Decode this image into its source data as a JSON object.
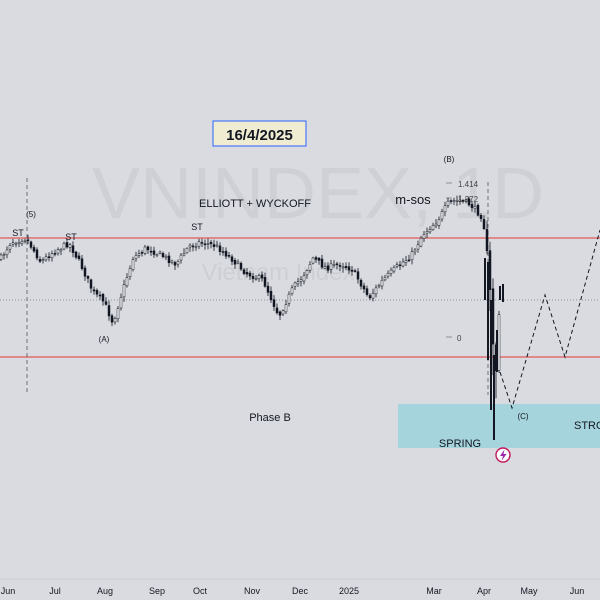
{
  "chart_data": {
    "type": "candlestick",
    "watermark": {
      "symbol": "VNINDEX, 1D",
      "sub": "Vietnam Index"
    },
    "date_box": "16/4/2025",
    "x_axis": {
      "ticks": [
        "Jun",
        "Jul",
        "Aug",
        "Sep",
        "Oct",
        "Nov",
        "Dec",
        "2025",
        "Mar",
        "Apr",
        "May",
        "Jun"
      ]
    },
    "annotations": {
      "title": "ELLIOTT + WYCKOFF",
      "phase": "Phase B",
      "spring": "SPRING",
      "strong": "STRO",
      "msos": "m-sos",
      "wave_5": "(5)",
      "wave_a": "(A)",
      "wave_b": "(B)",
      "wave_c": "(C)",
      "st_labels": [
        "ST",
        "ST",
        "ST"
      ],
      "fib_1414": "1.414",
      "fib_1272": "1.272",
      "fib_0": "0"
    },
    "upper_line_color": "#e53935",
    "lower_line_color": "#e53935",
    "support_zone_color": "#a6d4dc",
    "bull_color": "#131722",
    "bear_color": "#131722",
    "icon": "lightning-bolt-icon"
  }
}
